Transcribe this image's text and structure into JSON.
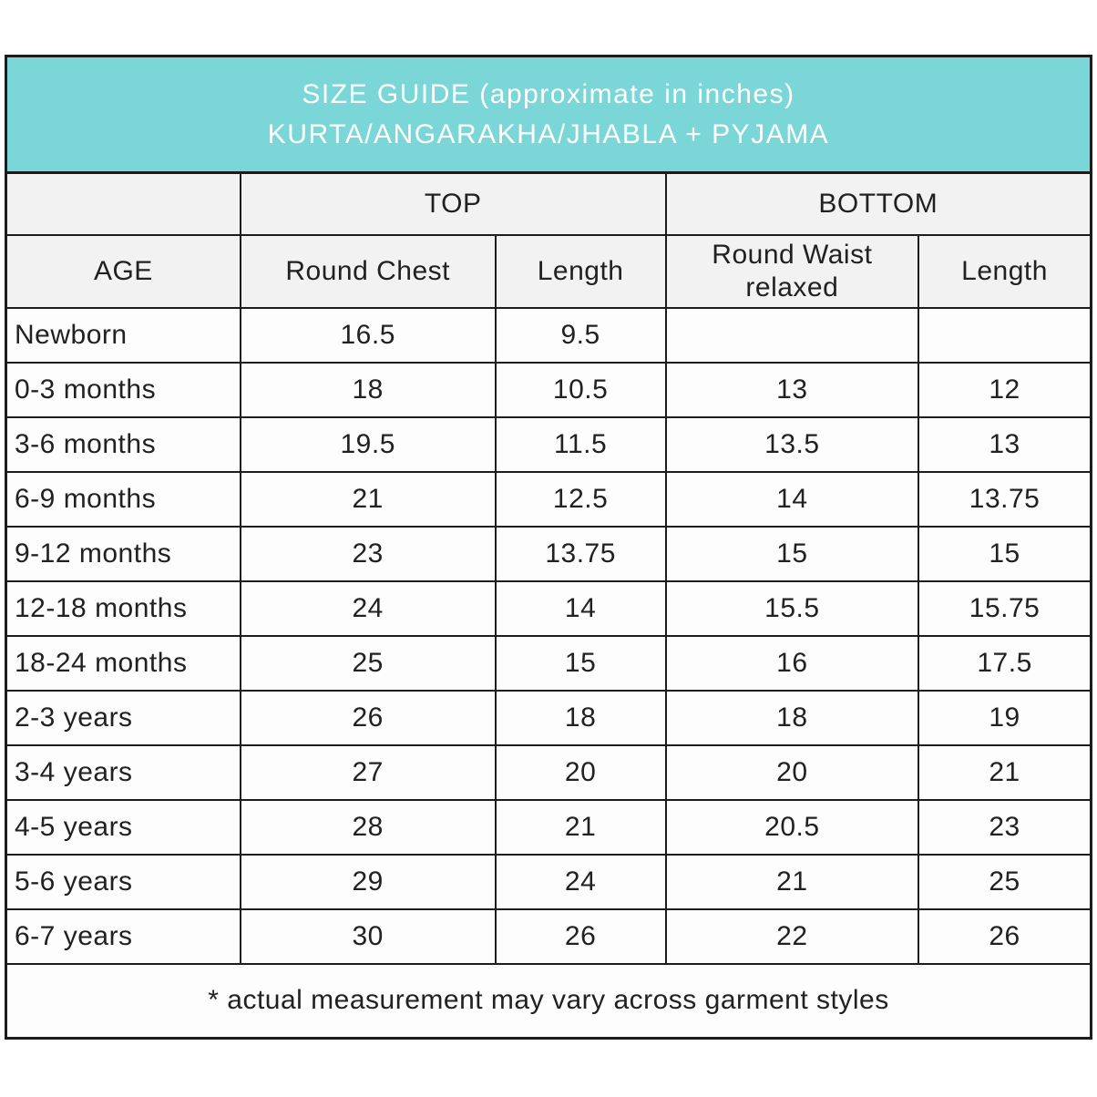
{
  "header": {
    "line1": "SIZE GUIDE (approximate in inches)",
    "line2": "KURTA/ANGARAKHA/JHABLA + PYJAMA",
    "background_color": "#7ad6d7",
    "text_color": "#ffffff"
  },
  "table": {
    "group_headers": [
      {
        "label": "",
        "span": 1
      },
      {
        "label": "TOP",
        "span": 2
      },
      {
        "label": "BOTTOM",
        "span": 2
      }
    ],
    "column_headers": [
      "AGE",
      "Round Chest",
      "Length",
      "Round Waist relaxed",
      "Length"
    ],
    "rows": [
      {
        "age": "Newborn",
        "top_round_chest": "16.5",
        "top_length": "9.5",
        "bottom_round_waist": "",
        "bottom_length": ""
      },
      {
        "age": "0-3 months",
        "top_round_chest": "18",
        "top_length": "10.5",
        "bottom_round_waist": "13",
        "bottom_length": "12"
      },
      {
        "age": "3-6 months",
        "top_round_chest": "19.5",
        "top_length": "11.5",
        "bottom_round_waist": "13.5",
        "bottom_length": "13"
      },
      {
        "age": "6-9 months",
        "top_round_chest": "21",
        "top_length": "12.5",
        "bottom_round_waist": "14",
        "bottom_length": "13.75"
      },
      {
        "age": "9-12 months",
        "top_round_chest": "23",
        "top_length": "13.75",
        "bottom_round_waist": "15",
        "bottom_length": "15"
      },
      {
        "age": "12-18 months",
        "top_round_chest": "24",
        "top_length": "14",
        "bottom_round_waist": "15.5",
        "bottom_length": "15.75"
      },
      {
        "age": "18-24 months",
        "top_round_chest": "25",
        "top_length": "15",
        "bottom_round_waist": "16",
        "bottom_length": "17.5"
      },
      {
        "age": "2-3 years",
        "top_round_chest": "26",
        "top_length": "18",
        "bottom_round_waist": "18",
        "bottom_length": "19"
      },
      {
        "age": "3-4 years",
        "top_round_chest": "27",
        "top_length": "20",
        "bottom_round_waist": "20",
        "bottom_length": "21"
      },
      {
        "age": "4-5 years",
        "top_round_chest": "28",
        "top_length": "21",
        "bottom_round_waist": "20.5",
        "bottom_length": "23"
      },
      {
        "age": "5-6 years",
        "top_round_chest": "29",
        "top_length": "24",
        "bottom_round_waist": "21",
        "bottom_length": "25"
      },
      {
        "age": "6-7 years",
        "top_round_chest": "30",
        "top_length": "26",
        "bottom_round_waist": "22",
        "bottom_length": "26"
      }
    ],
    "footnote": "* actual measurement may vary across garment styles",
    "border_color": "#1c1c1c",
    "header_row_background": "#f2f2f2",
    "data_row_background": "#fdfdfd"
  }
}
